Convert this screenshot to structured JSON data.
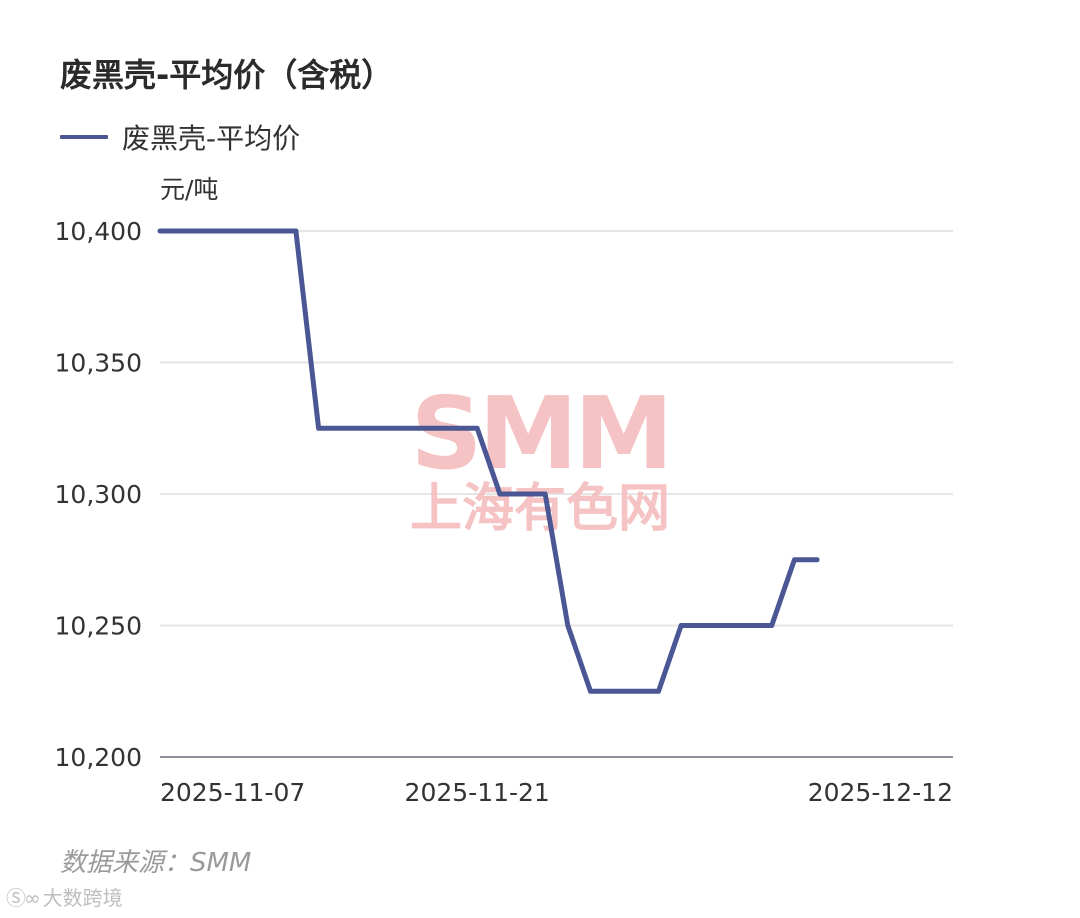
{
  "chart_data": {
    "type": "line",
    "title": "废黑壳-平均价（含税）",
    "ylabel": "元/吨",
    "ylim": [
      10200,
      10400
    ],
    "yticks": [
      10200,
      10250,
      10300,
      10350,
      10400
    ],
    "ytick_labels": [
      "10,200",
      "10,250",
      "10,300",
      "10,350",
      "10,400"
    ],
    "xlim": [
      "2025-11-07",
      "2025-12-12"
    ],
    "xtick_labels": [
      "2025-11-07",
      "2025-11-21",
      "2025-12-12"
    ],
    "grid": true,
    "legend_position": "top-left",
    "series": [
      {
        "name": "废黑壳-平均价",
        "color": "#4b5794",
        "points": [
          {
            "x": "2025-11-07",
            "y": 10400
          },
          {
            "x": "2025-11-13",
            "y": 10400
          },
          {
            "x": "2025-11-14",
            "y": 10325
          },
          {
            "x": "2025-11-18",
            "y": 10325
          },
          {
            "x": "2025-11-19",
            "y": 10325
          },
          {
            "x": "2025-11-20",
            "y": 10325
          },
          {
            "x": "2025-11-21",
            "y": 10325
          },
          {
            "x": "2025-11-22",
            "y": 10300
          },
          {
            "x": "2025-11-23",
            "y": 10300
          },
          {
            "x": "2025-11-24",
            "y": 10300
          },
          {
            "x": "2025-11-25",
            "y": 10250
          },
          {
            "x": "2025-11-26",
            "y": 10225
          },
          {
            "x": "2025-11-27",
            "y": 10225
          },
          {
            "x": "2025-11-28",
            "y": 10225
          },
          {
            "x": "2025-11-29",
            "y": 10225
          },
          {
            "x": "2025-11-30",
            "y": 10250
          },
          {
            "x": "2025-12-01",
            "y": 10250
          },
          {
            "x": "2025-12-02",
            "y": 10250
          },
          {
            "x": "2025-12-03",
            "y": 10250
          },
          {
            "x": "2025-12-04",
            "y": 10250
          },
          {
            "x": "2025-12-05",
            "y": 10275
          },
          {
            "x": "2025-12-06",
            "y": 10275
          }
        ]
      }
    ],
    "watermark": {
      "top": "SMM",
      "bottom": "上海有色网"
    }
  },
  "source_text": "数据来源：SMM",
  "brand_text": "大数跨境",
  "colors": {
    "line": "#4b5794",
    "grid": "#e6e6e6",
    "axis": "#8a8f99",
    "watermark": "#f3b8b8"
  }
}
